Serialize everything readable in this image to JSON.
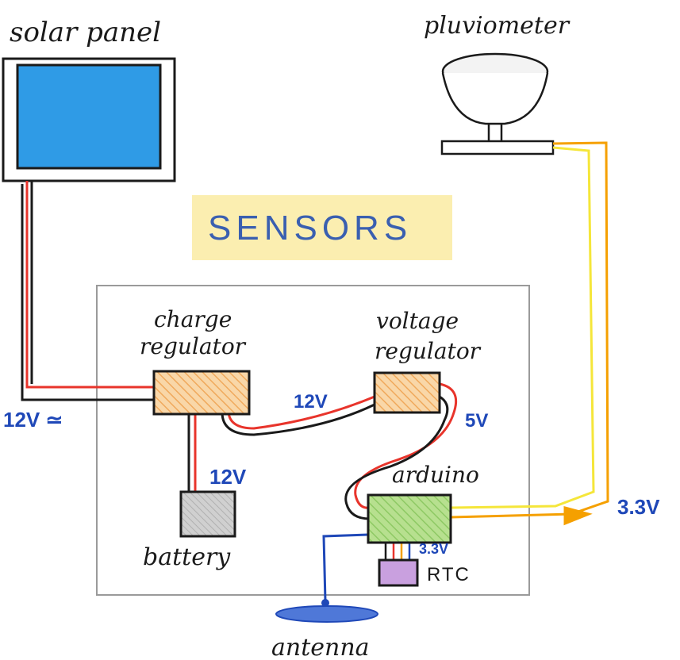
{
  "labels": {
    "solar_panel": "solar panel",
    "pluviometer": "pluviometer",
    "sensors": "SENSORS",
    "charge_regulator_1": "charge",
    "charge_regulator_2": "regulator",
    "voltage_regulator_1": "voltage",
    "voltage_regulator_2": "regulator",
    "battery": "battery",
    "arduino": "arduino",
    "rtc": "RTC",
    "antenna": "antenna"
  },
  "voltages": {
    "solar_input": "12V ≃",
    "charge_to_voltage": "12V",
    "voltage_to_arduino": "5V",
    "battery": "12V",
    "rtc": "3.3V",
    "pluviometer": "3.3V"
  },
  "colors": {
    "solar_fill": "#2f9be6",
    "module_fill": "#f7c78a",
    "arduino_fill": "#a5d87e",
    "battery_fill": "#c6c6c6",
    "rtc_fill": "#b981d3",
    "antenna_fill": "#4f78d8",
    "sensors_highlight": "#fbeeb0",
    "wire_red": "#e8342b",
    "wire_black": "#1a1a1a",
    "wire_orange": "#f5a000",
    "wire_yellow": "#f5e63a",
    "wire_blue": "#1f48b8",
    "label_blue": "#1f48b8"
  }
}
